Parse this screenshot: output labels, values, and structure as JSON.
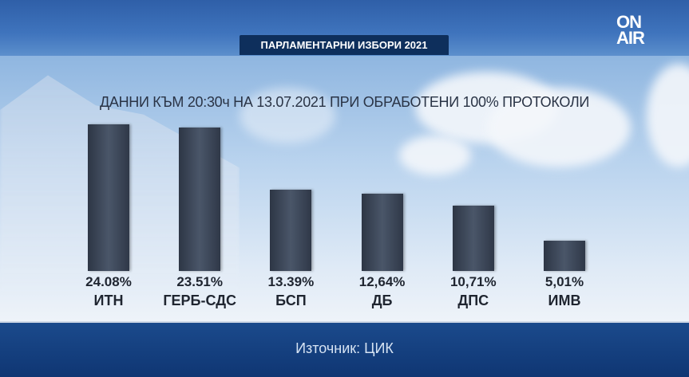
{
  "header": {
    "banner": "ПАРЛАМЕНТАРНИ ИЗБОРИ 2021",
    "logo": "ON AIR"
  },
  "footer": {
    "source": "Източник: ЦИК"
  },
  "colors": {
    "bar": "#3a4455",
    "top_band": "#3f74bd",
    "bottom_band": "#1b4a8c",
    "banner": "#0e2f5c"
  },
  "chart_data": {
    "type": "bar",
    "title": "ДАННИ КЪМ 20:30ч НА 13.07.2021 ПРИ ОБРАБОТЕНИ 100% ПРОТОКОЛИ",
    "categories": [
      "ИТН",
      "ГЕРБ-СДС",
      "БСП",
      "ДБ",
      "ДПС",
      "ИМВ"
    ],
    "values": [
      24.08,
      23.51,
      13.39,
      12.64,
      10.71,
      5.01
    ],
    "data_labels": [
      "24.08%",
      "23.51%",
      "13.39%",
      "12,64%",
      "10,71%",
      "5,01%"
    ],
    "ylim": [
      0,
      24.08
    ],
    "grid": false,
    "legend": "none"
  }
}
